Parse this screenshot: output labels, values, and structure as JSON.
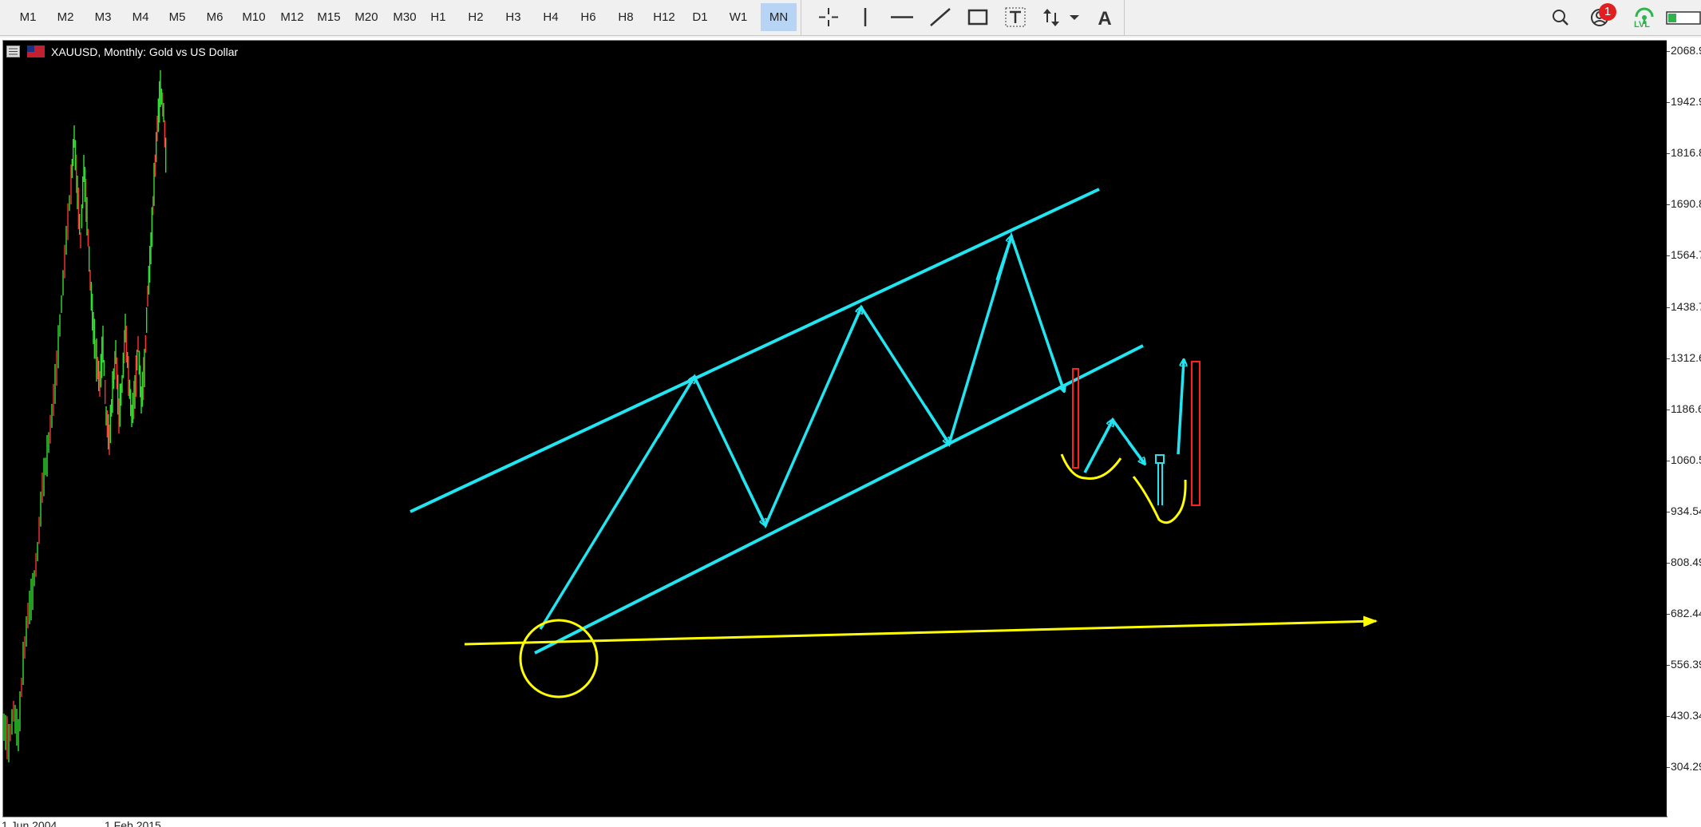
{
  "toolbar": {
    "timeframes": [
      "M1",
      "M2",
      "M3",
      "M4",
      "M5",
      "M6",
      "M10",
      "M12",
      "M15",
      "M20",
      "M30",
      "H1",
      "H2",
      "H3",
      "H4",
      "H6",
      "H8",
      "H12",
      "D1",
      "W1",
      "MN"
    ],
    "active_timeframe": "MN",
    "notification_count": "1",
    "lvl_label": "LVL"
  },
  "chart": {
    "title": "XAUUSD, Monthly:  Gold vs US Dollar",
    "y_ticks": [
      "2068.9",
      "1942.9",
      "1816.8",
      "1690.8",
      "1564.7",
      "1438.7",
      "1312.6",
      "1186.6",
      "1060.5",
      "934.54",
      "808.49",
      "682.44",
      "556.39",
      "430.34",
      "304.29"
    ],
    "x_ticks": [
      "1 Jun 2004",
      "1 Feb 2015"
    ],
    "colors": {
      "background": "#000000",
      "channel": "#22e5f2",
      "support": "#ffff00",
      "box": "#ff2020"
    }
  }
}
